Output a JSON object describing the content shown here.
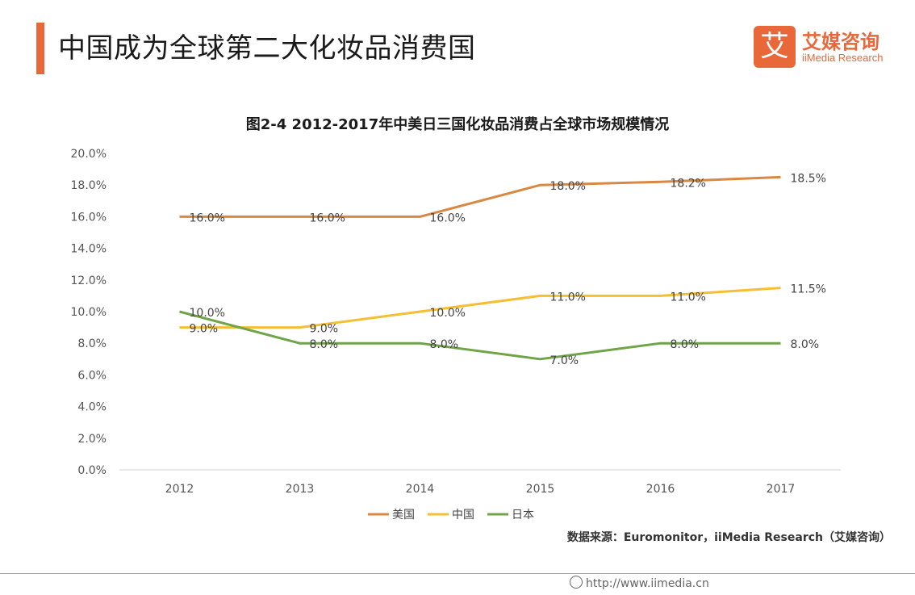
{
  "header": {
    "title": "中国成为全球第二大化妆品消费国",
    "logo": {
      "mark": "艾",
      "cn": "艾媒咨询",
      "en": "iiMedia Research"
    }
  },
  "chart_data": {
    "type": "line",
    "title": "图2-4 2012-2017年中美日三国化妆品消费占全球市场规模情况",
    "categories": [
      "2012",
      "2013",
      "2014",
      "2015",
      "2016",
      "2017"
    ],
    "ylim": [
      0,
      20
    ],
    "yticks": [
      "0.0%",
      "2.0%",
      "4.0%",
      "6.0%",
      "8.0%",
      "10.0%",
      "12.0%",
      "14.0%",
      "16.0%",
      "18.0%",
      "20.0%"
    ],
    "series": [
      {
        "name": "美国",
        "color": "#d98843",
        "values": [
          16.0,
          16.0,
          16.0,
          18.0,
          18.2,
          18.5
        ],
        "labels": [
          "16.0%",
          "16.0%",
          "16.0%",
          "18.0%",
          "18.2%",
          "18.5%"
        ]
      },
      {
        "name": "中国",
        "color": "#f5be33",
        "values": [
          9.0,
          9.0,
          10.0,
          11.0,
          11.0,
          11.5
        ],
        "labels": [
          "9.0%",
          "9.0%",
          "10.0%",
          "11.0%",
          "11.0%",
          "11.5%"
        ]
      },
      {
        "name": "日本",
        "color": "#70a448",
        "values": [
          10.0,
          8.0,
          8.0,
          7.0,
          8.0,
          8.0
        ],
        "labels": [
          "10.0%",
          "8.0%",
          "8.0%",
          "7.0%",
          "8.0%",
          "8.0%"
        ]
      }
    ],
    "legend": "bottom-center",
    "grid": false
  },
  "source": "数据来源：Euromonitor，iiMedia Research（艾媒咨询）",
  "footer": {
    "url": "http://www.iimedia.cn"
  }
}
